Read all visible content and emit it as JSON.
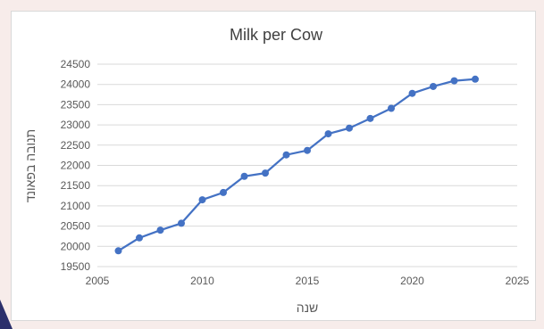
{
  "colors": {
    "series": "#4472c4",
    "axis_text": "#595959",
    "title_text": "#404040",
    "grid": "#d9d9d9",
    "background": "#ffffff"
  },
  "chart_data": {
    "type": "line",
    "title": "Milk per Cow",
    "xlabel": "שנה",
    "ylabel": "תנובה בפאונד",
    "xlim": [
      2005,
      2025
    ],
    "ylim": [
      19500,
      24500
    ],
    "x_ticks": [
      2005,
      2010,
      2015,
      2020,
      2025
    ],
    "y_ticks": [
      19500,
      20000,
      20500,
      21000,
      21500,
      22000,
      22500,
      23000,
      23500,
      24000,
      24500
    ],
    "grid": "horizontal",
    "legend": "none",
    "series": [
      {
        "x": [
          2006,
          2007,
          2008,
          2009,
          2010,
          2011,
          2012,
          2013,
          2014,
          2015,
          2016,
          2017,
          2018,
          2019,
          2020,
          2021,
          2022,
          2023
        ],
        "y": [
          19890,
          20210,
          20400,
          20570,
          21150,
          21330,
          21730,
          21810,
          22260,
          22370,
          22780,
          22920,
          23160,
          23410,
          23780,
          23950,
          24090,
          24130
        ]
      }
    ]
  }
}
